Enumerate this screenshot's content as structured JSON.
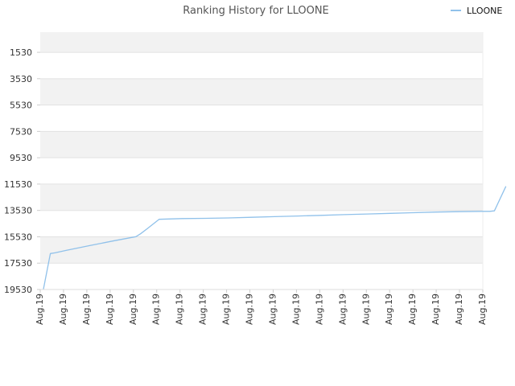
{
  "chart_data": {
    "type": "line",
    "title": "Ranking History for LLOONE",
    "legend": {
      "position": "top-right"
    },
    "y_axis": {
      "inverted": true,
      "ylim": [
        19530,
        0
      ],
      "ticks": [
        1530,
        3530,
        5530,
        7530,
        9530,
        11530,
        13530,
        15530,
        17530,
        19530
      ],
      "tick_labels": [
        "1530",
        "3530",
        "5530",
        "7530",
        "9530",
        "11530",
        "13530",
        "15530",
        "17530",
        "19530"
      ]
    },
    "x_axis": {
      "tick_labels": [
        "Aug.19",
        "Aug.19",
        "Aug.19",
        "Aug.19",
        "Aug.19",
        "Aug.19",
        "Aug.19",
        "Aug.19",
        "Aug.19",
        "Aug.19",
        "Aug.19",
        "Aug.19",
        "Aug.19",
        "Aug.19",
        "Aug.19",
        "Aug.19",
        "Aug.19",
        "Aug.19",
        "Aug.19",
        "Aug.19"
      ]
    },
    "grid": true,
    "series": [
      {
        "name": "LLOONE",
        "color": "#90c1ea",
        "x": [
          0.0,
          0.3,
          0.5,
          1.0,
          2.0,
          3.0,
          4.0,
          4.2,
          4.5,
          5.0,
          6.0,
          7.0,
          8.0,
          9.0,
          10.0,
          11.0,
          12.0,
          13.0,
          14.0,
          15.0,
          16.0,
          17.0,
          18.0,
          19.0,
          19.3,
          19.5,
          20.0
        ],
        "y": [
          19500,
          16800,
          16750,
          16550,
          16200,
          15850,
          15520,
          15300,
          14900,
          14200,
          14150,
          14130,
          14100,
          14050,
          14000,
          13950,
          13900,
          13850,
          13800,
          13750,
          13700,
          13650,
          13620,
          13600,
          13600,
          13560,
          11700
        ]
      }
    ]
  }
}
